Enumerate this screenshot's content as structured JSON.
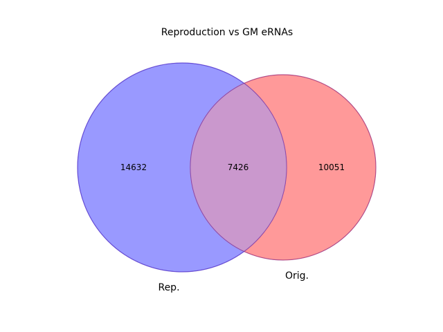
{
  "title": "Reproduction vs GM eRNAs",
  "sets": [
    {
      "label": "Rep.",
      "color": "#0000ff"
    },
    {
      "label": "Orig.",
      "color": "#ff0000"
    }
  ],
  "regions": {
    "only_a": "14632",
    "both": "7426",
    "only_b": "10051"
  },
  "colors": {
    "overlap": "#ca98cd",
    "overlap_edge": "#6633aa"
  }
}
